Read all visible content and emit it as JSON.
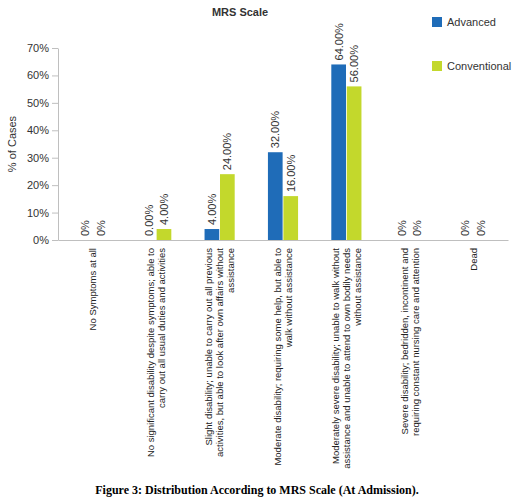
{
  "chart_data": {
    "type": "bar",
    "title": "MRS Scale",
    "caption": "Figure 3: Distribution According to MRS Scale (At Admission).",
    "ylabel": "% of Cases",
    "categories": [
      "No Symptoms at all",
      "No significant disability despite symptoms; able to carry out all usual duties and activities",
      "Slight disability; unable to carry out all previous activities, but able to look after own affairs without assistance",
      "Moderate disability; requiring some help, but able to walk without assistance",
      "Moderately severe disability; unable to walk without assistance and unable to attend to own bodily needs without assistance",
      "Severe disability; bedridden, incontinent and requiring constant nursing care and attention",
      "Dead"
    ],
    "series": [
      {
        "name": "Advanced",
        "color": "#1f6cb8",
        "values": [
          0,
          0,
          4,
          32,
          64,
          0,
          0
        ],
        "value_labels": [
          "0%",
          "0.00%",
          "4.00%",
          "32.00%",
          "64.00%",
          "0%",
          "0%"
        ]
      },
      {
        "name": "Conventional",
        "color": "#c3d82c",
        "values": [
          0,
          4,
          24,
          16,
          56,
          0,
          0
        ],
        "value_labels": [
          "0%",
          "4.00%",
          "24.00%",
          "16.00%",
          "56.00%",
          "0%",
          "0%"
        ]
      }
    ],
    "ylim": [
      0,
      70
    ],
    "yticks": [
      {
        "value": 0,
        "label": "0%"
      },
      {
        "value": 10,
        "label": "10%"
      },
      {
        "value": 20,
        "label": "20%"
      },
      {
        "value": 30,
        "label": "30%"
      },
      {
        "value": 40,
        "label": "40%"
      },
      {
        "value": 50,
        "label": "50%"
      },
      {
        "value": 60,
        "label": "60%"
      },
      {
        "value": 70,
        "label": "70%"
      }
    ],
    "grid": false,
    "legend": "top-right",
    "data_labels": true
  }
}
